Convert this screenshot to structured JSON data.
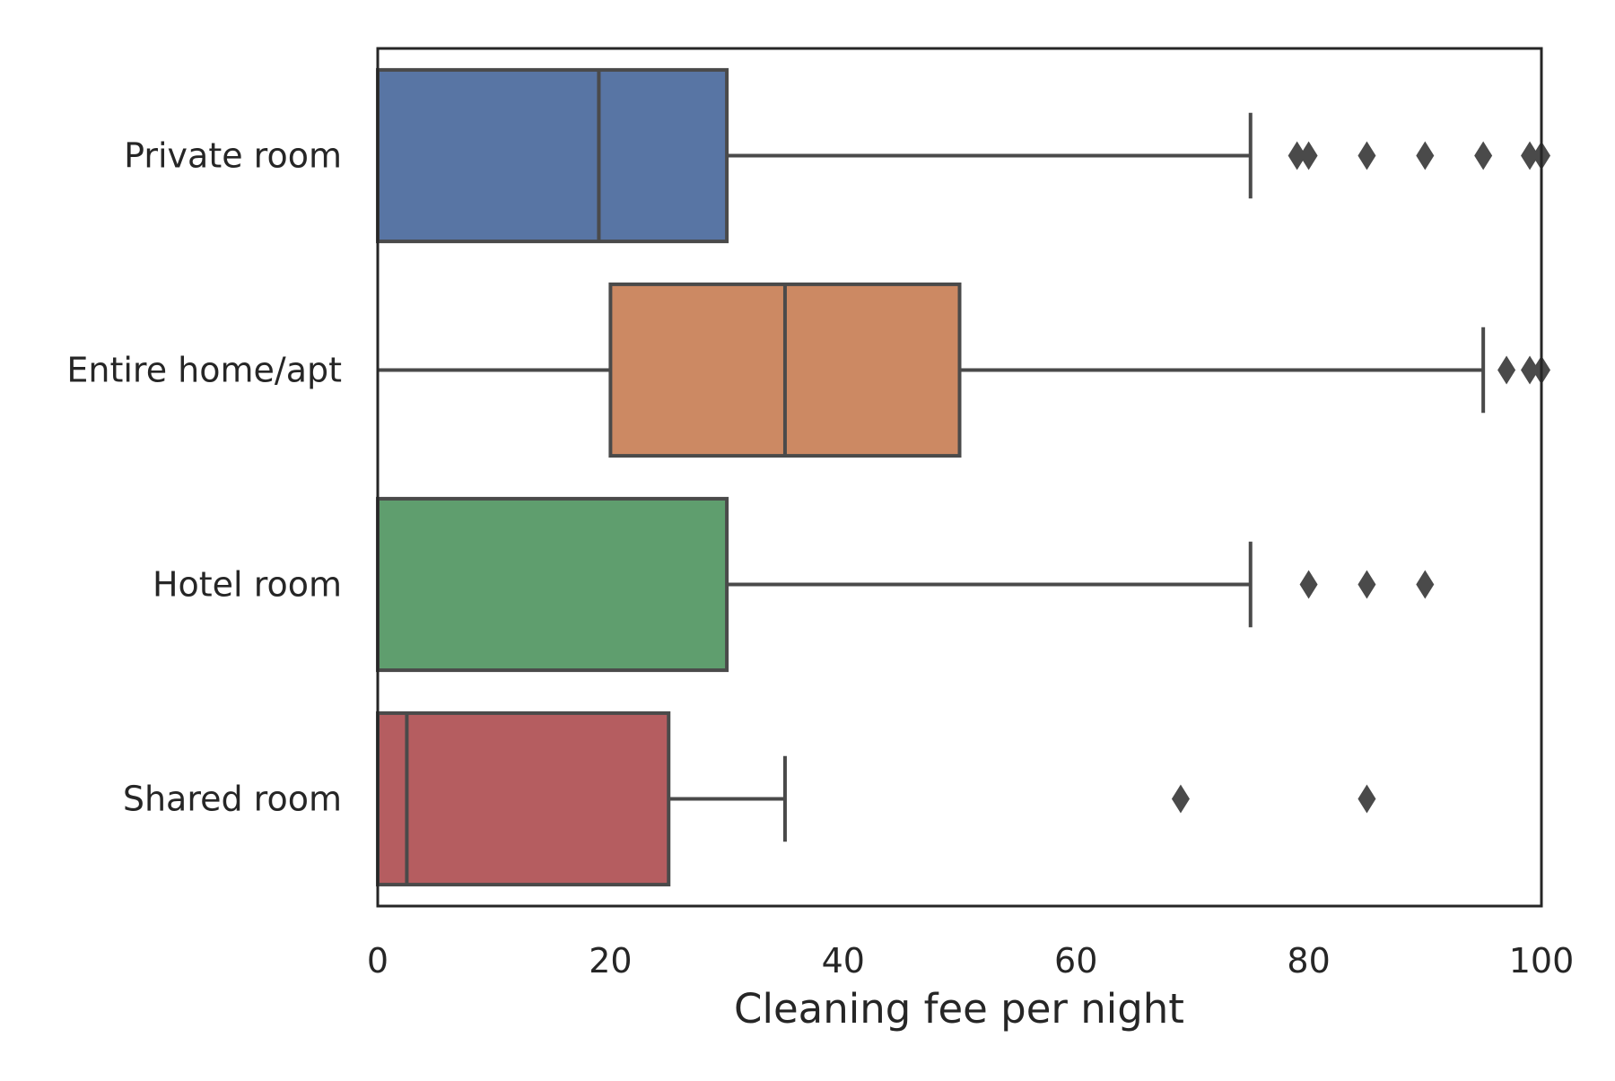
{
  "chart_data": {
    "type": "boxplot",
    "orientation": "horizontal",
    "title": "",
    "xlabel": "Cleaning fee per night",
    "ylabel": "",
    "xlim": [
      0,
      100
    ],
    "xticks": [
      "0",
      "20",
      "40",
      "60",
      "80",
      "100"
    ],
    "grid": false,
    "categories": [
      "Private room",
      "Entire home/apt",
      "Hotel room",
      "Shared room"
    ],
    "series": [
      {
        "category": "Private room",
        "color": "#5875a4",
        "whisker_low": 0,
        "q1": 0,
        "median": 19,
        "q3": 30,
        "whisker_high": 75,
        "outliers": [
          79,
          80,
          85,
          90,
          95,
          99,
          100
        ]
      },
      {
        "category": "Entire home/apt",
        "color": "#cc8963",
        "whisker_low": 0,
        "q1": 20,
        "median": 35,
        "q3": 50,
        "whisker_high": 95,
        "outliers": [
          97,
          99,
          100
        ]
      },
      {
        "category": "Hotel room",
        "color": "#5f9e6e",
        "whisker_low": 0,
        "q1": 0,
        "median": 0,
        "q3": 30,
        "whisker_high": 75,
        "outliers": [
          80,
          85,
          90
        ]
      },
      {
        "category": "Shared room",
        "color": "#b55d60",
        "whisker_low": 0,
        "q1": 0,
        "median": 2.5,
        "q3": 25,
        "whisker_high": 35,
        "outliers": [
          69,
          85
        ]
      }
    ],
    "line_color": "#4a4a4a"
  }
}
